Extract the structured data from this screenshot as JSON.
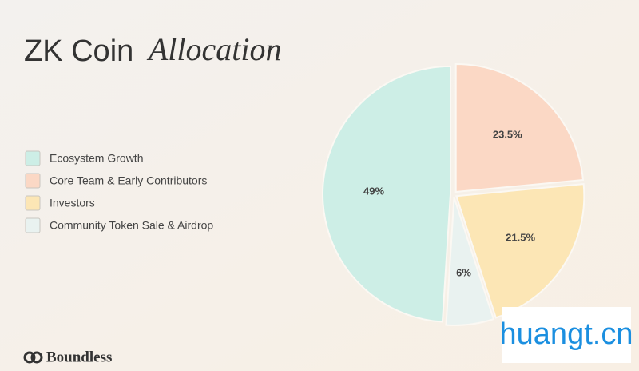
{
  "chart_data": {
    "type": "pie",
    "title": [
      "ZK Coin",
      "Allocation"
    ],
    "categories": [
      "Ecosystem Growth",
      "Core Team & Early Contributors",
      "Investors",
      "Community Token Sale & Airdrop"
    ],
    "values": [
      49,
      23.5,
      21.5,
      6
    ],
    "value_labels": [
      "49%",
      "23.5%",
      "21.5%",
      "6%"
    ],
    "colors": [
      "#cdeee6",
      "#fbd8c5",
      "#fce6b5",
      "#e9f2f0"
    ],
    "legend": "left"
  },
  "footer": {
    "brand": "Boundless"
  },
  "watermark": "huangt.cn"
}
